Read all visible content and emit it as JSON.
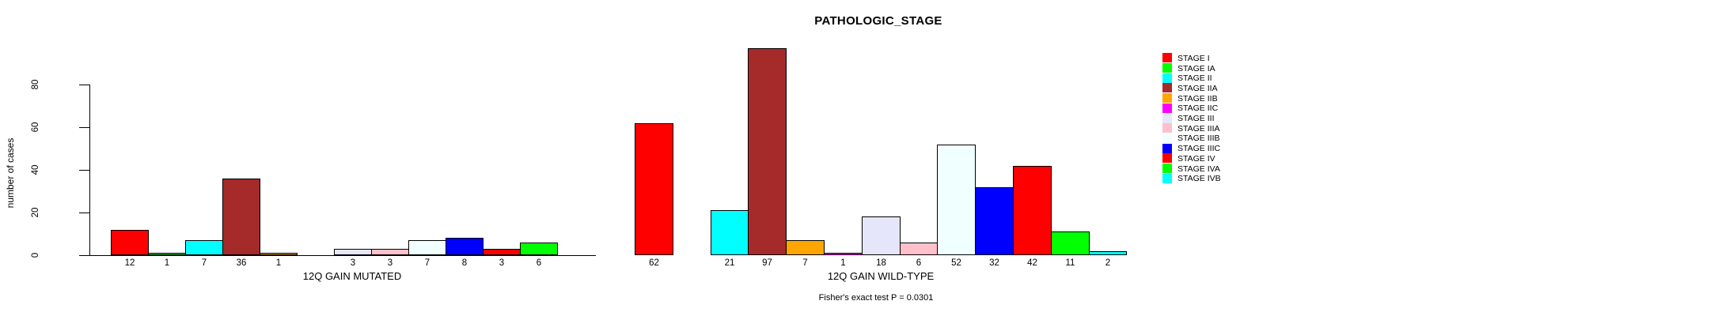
{
  "title": "PATHOLOGIC_STAGE",
  "chart_data": {
    "type": "bar",
    "title": "PATHOLOGIC_STAGE",
    "ylabel": "number of cases",
    "ylim": [
      0,
      80
    ],
    "yticks": [
      0,
      20,
      40,
      60,
      80
    ],
    "grid": false,
    "legend_position": "right",
    "annotation": "Fisher's exact test P = 0.0301",
    "categories": [
      "STAGE I",
      "STAGE IA",
      "STAGE II",
      "STAGE IIA",
      "STAGE IIB",
      "STAGE IIC",
      "STAGE III",
      "STAGE IIIA",
      "STAGE IIIB",
      "STAGE IIIC",
      "STAGE IV",
      "STAGE IVA",
      "STAGE IVB"
    ],
    "colors": [
      "#FF0000",
      "#00FF00",
      "#00FFFF",
      "#A52A2A",
      "#FFA500",
      "#FF00FF",
      "#E6E6FA",
      "#FFC0CB",
      "#F0FFFF",
      "#0000FF",
      "#FF0000",
      "#00FF00",
      "#00FFFF"
    ],
    "series": [
      {
        "name": "12Q GAIN MUTATED",
        "values": [
          12,
          1,
          7,
          36,
          1,
          0,
          3,
          3,
          7,
          8,
          3,
          6,
          0
        ]
      },
      {
        "name": "12Q GAIN WILD-TYPE",
        "values": [
          62,
          0,
          21,
          97,
          7,
          1,
          18,
          6,
          52,
          32,
          42,
          11,
          2
        ]
      }
    ]
  }
}
